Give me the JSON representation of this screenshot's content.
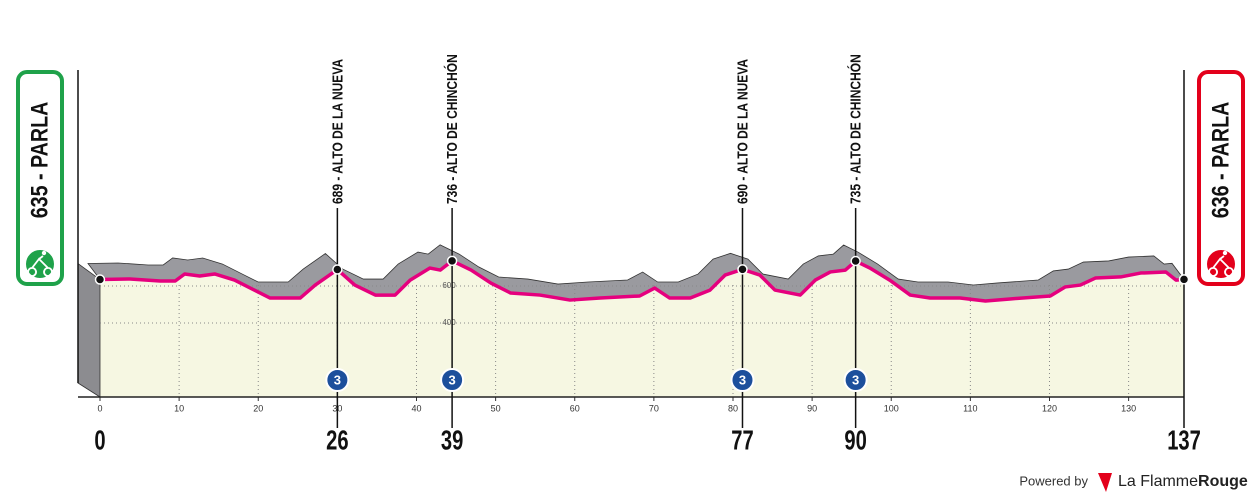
{
  "chart_data": {
    "type": "line",
    "x": [
      0,
      3.8,
      7.6,
      9.5,
      10.7,
      12.6,
      14.5,
      17,
      19.5,
      21.5,
      25.3,
      27.2,
      30,
      32.2,
      34.8,
      37.3,
      39.2,
      41.7,
      43,
      44.5,
      46.9,
      49.4,
      51.9,
      55.6,
      59.4,
      63.2,
      68.2,
      70.1,
      72,
      74.6,
      77.1,
      79,
      81.2,
      83.4,
      85.3,
      88.5,
      90.4,
      92.3,
      94.2,
      95.5,
      97.3,
      99.8,
      102.4,
      104.9,
      108.7,
      111.9,
      115,
      120.1,
      122,
      123.9,
      125.8,
      129,
      131.5,
      134.7,
      136,
      137
    ],
    "values": [
      635,
      638,
      627,
      627,
      665,
      654,
      665,
      632,
      578,
      535,
      535,
      605,
      689,
      605,
      551,
      551,
      632,
      697,
      686,
      736,
      686,
      616,
      562,
      551,
      524,
      535,
      546,
      589,
      535,
      535,
      578,
      659,
      690,
      659,
      578,
      551,
      632,
      676,
      686,
      735,
      697,
      632,
      551,
      535,
      535,
      519,
      530,
      546,
      595,
      605,
      643,
      649,
      670,
      676,
      632,
      636
    ],
    "color": "#e5007e",
    "xlim": [
      0,
      137
    ],
    "ylim": [
      0,
      1800
    ],
    "xticks": [
      0,
      10,
      20,
      30,
      40,
      50,
      60,
      70,
      80,
      90,
      100,
      110,
      120,
      130
    ],
    "yticks": [
      400,
      600
    ],
    "grid": true,
    "start": {
      "label": "635 - PARLA",
      "color": "#1fa24a"
    },
    "finish": {
      "label": "636 - PARLA",
      "color": "#e3001b"
    },
    "climbs": [
      {
        "x": 30,
        "label": "689 - ALTO DE LA NUEVA",
        "category": "3"
      },
      {
        "x": 44.5,
        "label": "736 - ALTO DE CHINCHÓN",
        "category": "3"
      },
      {
        "x": 81.2,
        "label": "690 - ALTO DE  LA NUEVA",
        "category": "3"
      },
      {
        "x": 95.5,
        "label": "735 - ALTO DE CHINCHÓN",
        "category": "3"
      }
    ],
    "distance_labels": [
      "0",
      "26",
      "39",
      "77",
      "90",
      "137"
    ]
  },
  "footer": {
    "powered": "Powered by",
    "brand": "La Flamme",
    "brand_bold": "Rouge"
  }
}
